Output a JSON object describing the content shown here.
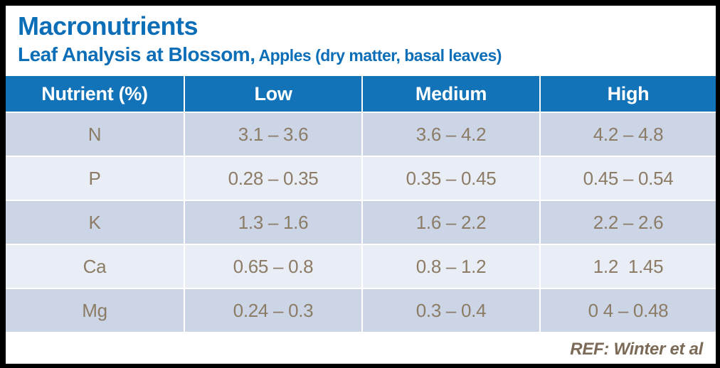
{
  "header": {
    "title": "Macronutrients",
    "subtitle_main": "Leaf Analysis at Blossom,",
    "subtitle_detail": " Apples (dry matter, basal leaves)"
  },
  "table": {
    "columns": [
      "Nutrient (%)",
      "Low",
      "Medium",
      "High"
    ],
    "rows": [
      {
        "nutrient": "N",
        "low": "3.1 – 3.6",
        "medium": "3.6 – 4.2",
        "high": "4.2 – 4.8"
      },
      {
        "nutrient": "P",
        "low": "0.28 – 0.35",
        "medium": "0.35 – 0.45",
        "high": "0.45 – 0.54"
      },
      {
        "nutrient": "K",
        "low": "1.3 – 1.6",
        "medium": "1.6 – 2.2",
        "high": "2.2 – 2.6"
      },
      {
        "nutrient": "Ca",
        "low": "0.65 – 0.8",
        "medium": "0.8 – 1.2",
        "high": "1.2  1.45"
      },
      {
        "nutrient": "Mg",
        "low": "0.24 – 0.3",
        "medium": "0.3 – 0.4",
        "high": "0 4 – 0.48"
      }
    ]
  },
  "footer": {
    "reference": "REF: Winter et al"
  },
  "colors": {
    "accent_blue": "#0D6EB8",
    "header_blue": "#1273B9",
    "row_dark": "#CBD5E6",
    "row_light": "#E9EDF5",
    "cell_text": "#8C7C66",
    "footer_text": "#7A6A57",
    "frame": "#000000",
    "gridline": "#FFFFFF"
  }
}
